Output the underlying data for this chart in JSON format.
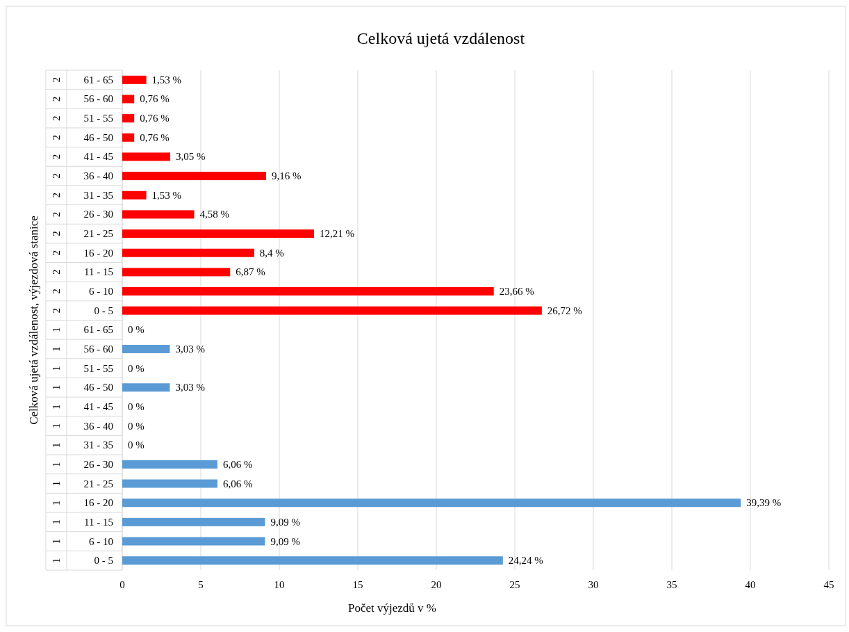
{
  "chart_data": {
    "type": "bar",
    "orientation": "horizontal",
    "title": "Celková ujetá vzdálenost",
    "xlabel": "Počet výjezdů v %",
    "ylabel": "Celková ujetá vzdálenost, výjezdová stanice",
    "categories": [
      "61 - 65",
      "56 - 60",
      "51 - 55",
      "46 - 50",
      "41 - 45",
      "36 - 40",
      "31 - 35",
      "26 - 30",
      "21 - 25",
      "16 - 20",
      "11 - 15",
      "6 - 10",
      "0 - 5",
      "61 - 65",
      "56 - 60",
      "51 - 55",
      "46 - 50",
      "41 - 45",
      "36 - 40",
      "31 - 35",
      "26 - 30",
      "21 - 25",
      "16 - 20",
      "11 - 15",
      "6 - 10",
      "0 - 5"
    ],
    "series": [
      {
        "name": "2",
        "color": "#ff0000",
        "values": [
          1.53,
          0.76,
          0.76,
          0.76,
          3.05,
          9.16,
          1.53,
          4.58,
          12.21,
          8.4,
          6.87,
          23.66,
          26.72,
          null,
          null,
          null,
          null,
          null,
          null,
          null,
          null,
          null,
          null,
          null,
          null,
          null
        ],
        "value_labels": [
          "1,53 %",
          "0,76 %",
          "0,76 %",
          "0,76 %",
          "3,05 %",
          "9,16 %",
          "1,53 %",
          "4,58 %",
          "12,21 %",
          "8,4 %",
          "6,87 %",
          "23,66 %",
          "26,72 %",
          null,
          null,
          null,
          null,
          null,
          null,
          null,
          null,
          null,
          null,
          null,
          null,
          null
        ]
      },
      {
        "name": "1",
        "color": "#5b9bd5",
        "values": [
          null,
          null,
          null,
          null,
          null,
          null,
          null,
          null,
          null,
          null,
          null,
          null,
          null,
          0,
          3.03,
          0,
          3.03,
          0,
          0,
          0,
          6.06,
          6.06,
          39.39,
          9.09,
          9.09,
          24.24
        ],
        "value_labels": [
          null,
          null,
          null,
          null,
          null,
          null,
          null,
          null,
          null,
          null,
          null,
          null,
          null,
          "0 %",
          "3,03 %",
          "0 %",
          "3,03 %",
          "0 %",
          "0 %",
          "0 %",
          "6,06 %",
          "6,06 %",
          "39,39 %",
          "9,09 %",
          "9,09 %",
          "24,24 %"
        ]
      }
    ],
    "xlim": [
      0,
      45
    ],
    "xticks": [
      0,
      5,
      10,
      15,
      20,
      25,
      30,
      35,
      40,
      45
    ],
    "grid": "x"
  }
}
